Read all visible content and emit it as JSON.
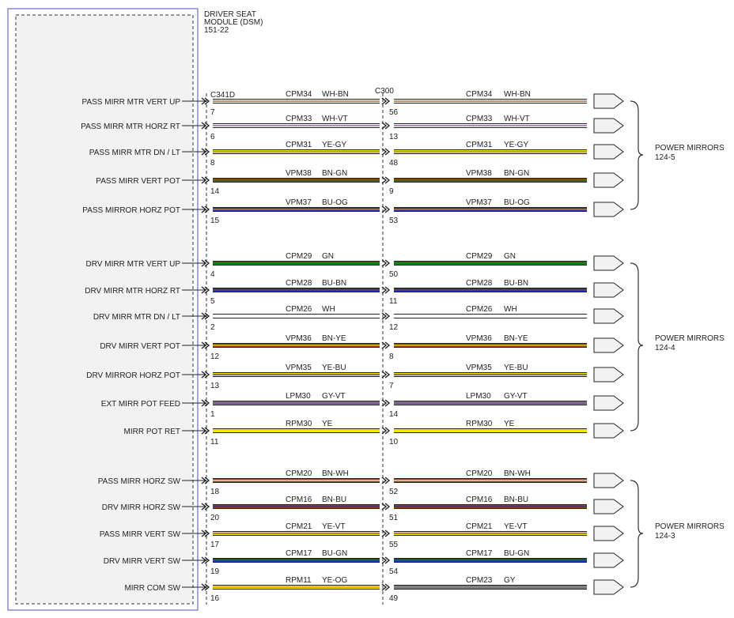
{
  "module": {
    "title_lines": [
      "DRIVER SEAT",
      "MODULE (DSM)",
      "151-22"
    ]
  },
  "connectors": {
    "left": "C341D",
    "middle": "C300"
  },
  "groups": [
    {
      "label_lines": [
        "POWER MIRRORS",
        "124-5"
      ]
    },
    {
      "label_lines": [
        "POWER MIRRORS",
        "124-4"
      ]
    },
    {
      "label_lines": [
        "POWER MIRRORS",
        "124-3"
      ]
    }
  ],
  "wires": [
    {
      "label": "PASS MIRR MTR VERT UP",
      "pin_left": "7",
      "pin_right": "56",
      "circuit_left": "CPM34",
      "color_left": "WH-BN",
      "circuit_right": "CPM34",
      "color_right": "WH-BN",
      "group": 0
    },
    {
      "label": "PASS MIRR MTR HORZ RT",
      "pin_left": "6",
      "pin_right": "13",
      "circuit_left": "CPM33",
      "color_left": "WH-VT",
      "circuit_right": "CPM33",
      "color_right": "WH-VT",
      "group": 0
    },
    {
      "label": "PASS MIRR MTR DN / LT",
      "pin_left": "8",
      "pin_right": "48",
      "circuit_left": "CPM31",
      "color_left": "YE-GY",
      "circuit_right": "CPM31",
      "color_right": "YE-GY",
      "group": 0
    },
    {
      "label": "PASS MIRR VERT POT",
      "pin_left": "14",
      "pin_right": "9",
      "circuit_left": "VPM38",
      "color_left": "BN-GN",
      "circuit_right": "VPM38",
      "color_right": "BN-GN",
      "group": 0
    },
    {
      "label": "PASS MIRROR HORZ POT",
      "pin_left": "15",
      "pin_right": "53",
      "circuit_left": "VPM37",
      "color_left": "BU-OG",
      "circuit_right": "VPM37",
      "color_right": "BU-OG",
      "group": 0
    },
    {
      "label": "DRV MIRR MTR VERT UP",
      "pin_left": "4",
      "pin_right": "50",
      "circuit_left": "CPM29",
      "color_left": "GN",
      "circuit_right": "CPM29",
      "color_right": "GN",
      "group": 1
    },
    {
      "label": "DRV MIRR MTR HORZ RT",
      "pin_left": "5",
      "pin_right": "11",
      "circuit_left": "CPM28",
      "color_left": "BU-BN",
      "circuit_right": "CPM28",
      "color_right": "BU-BN",
      "group": 1
    },
    {
      "label": "DRV MIRR MTR DN / LT",
      "pin_left": "2",
      "pin_right": "12",
      "circuit_left": "CPM26",
      "color_left": "WH",
      "circuit_right": "CPM26",
      "color_right": "WH",
      "group": 1
    },
    {
      "label": "DRV MIRR VERT POT",
      "pin_left": "12",
      "pin_right": "8",
      "circuit_left": "VPM36",
      "color_left": "BN-YE",
      "circuit_right": "VPM36",
      "color_right": "BN-YE",
      "group": 1
    },
    {
      "label": "DRV MIRROR HORZ POT",
      "pin_left": "13",
      "pin_right": "7",
      "circuit_left": "VPM35",
      "color_left": "YE-BU",
      "circuit_right": "VPM35",
      "color_right": "YE-BU",
      "group": 1
    },
    {
      "label": "EXT MIRR POT FEED",
      "pin_left": "1",
      "pin_right": "14",
      "circuit_left": "LPM30",
      "color_left": "GY-VT",
      "circuit_right": "LPM30",
      "color_right": "GY-VT",
      "group": 1
    },
    {
      "label": "MIRR POT RET",
      "pin_left": "11",
      "pin_right": "10",
      "circuit_left": "RPM30",
      "color_left": "YE",
      "circuit_right": "RPM30",
      "color_right": "YE",
      "group": 1
    },
    {
      "label": "PASS MIRR HORZ SW",
      "pin_left": "18",
      "pin_right": "52",
      "circuit_left": "CPM20",
      "color_left": "BN-WH",
      "circuit_right": "CPM20",
      "color_right": "BN-WH",
      "group": 2
    },
    {
      "label": "DRV MIRR HORZ SW",
      "pin_left": "20",
      "pin_right": "51",
      "circuit_left": "CPM16",
      "color_left": "BN-BU",
      "circuit_right": "CPM16",
      "color_right": "BN-BU",
      "group": 2
    },
    {
      "label": "PASS MIRR VERT SW",
      "pin_left": "17",
      "pin_right": "55",
      "circuit_left": "CPM21",
      "color_left": "YE-VT",
      "circuit_right": "CPM21",
      "color_right": "YE-VT",
      "group": 2
    },
    {
      "label": "DRV MIRR VERT SW",
      "pin_left": "19",
      "pin_right": "54",
      "circuit_left": "CPM17",
      "color_left": "BU-GN",
      "circuit_right": "CPM17",
      "color_right": "BU-GN",
      "group": 2
    },
    {
      "label": "MIRR COM SW",
      "pin_left": "16",
      "pin_right": "49",
      "circuit_left": "RPM11",
      "color_left": "YE-OG",
      "circuit_right": "CPM23",
      "color_right": "GY",
      "group": 2
    }
  ],
  "wire_color_codes": {
    "WH": "#ffffff",
    "BN": "#8b4513",
    "VT": "#7a3e9d",
    "YE": "#f2e600",
    "GY": "#808080",
    "GN": "#1a7a1a",
    "BU": "#1f2fbf",
    "OG": "#f08c00",
    "BK": "#000000",
    "RD": "#cc0000"
  },
  "colors": {
    "module_border": "#6b6bd6",
    "line": "#222222"
  }
}
